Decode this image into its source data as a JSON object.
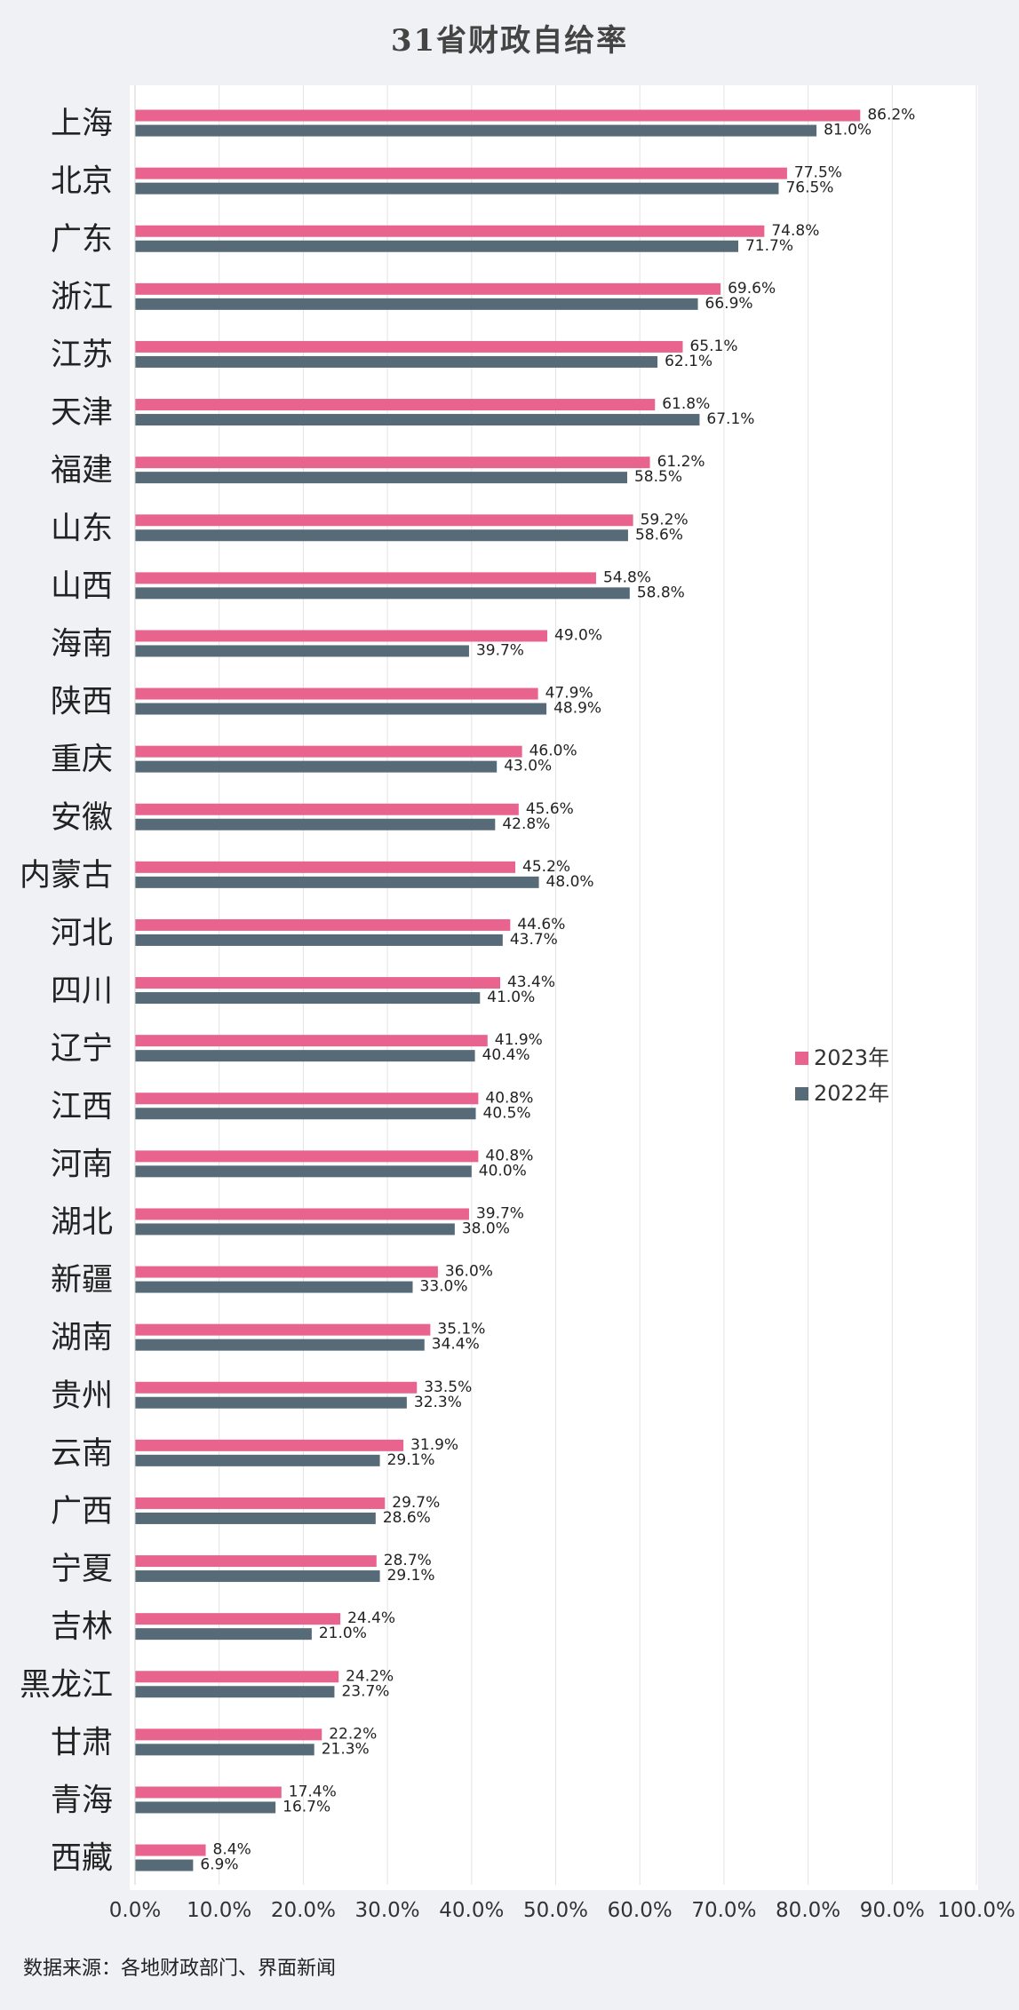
{
  "chart_data": {
    "type": "bar",
    "orientation": "horizontal",
    "title": "31省财政自给率",
    "categories": [
      "上海",
      "北京",
      "广东",
      "浙江",
      "江苏",
      "天津",
      "福建",
      "山东",
      "山西",
      "海南",
      "陕西",
      "重庆",
      "安徽",
      "内蒙古",
      "河北",
      "四川",
      "辽宁",
      "江西",
      "河南",
      "湖北",
      "新疆",
      "湖南",
      "贵州",
      "云南",
      "广西",
      "宁夏",
      "吉林",
      "黑龙江",
      "甘肃",
      "青海",
      "西藏"
    ],
    "series": [
      {
        "name": "2023年",
        "color": "#e8648e",
        "values": [
          86.2,
          77.5,
          74.8,
          69.6,
          65.1,
          61.8,
          61.2,
          59.2,
          54.8,
          49.0,
          47.9,
          46.0,
          45.6,
          45.2,
          44.6,
          43.4,
          41.9,
          40.8,
          40.8,
          39.7,
          36.0,
          35.1,
          33.5,
          31.9,
          29.7,
          28.7,
          24.4,
          24.2,
          22.2,
          17.4,
          8.4
        ],
        "labels": [
          "86.2%",
          "77.5%",
          "74.8%",
          "69.6%",
          "65.1%",
          "61.8%",
          "61.2%",
          "59.2%",
          "54.8%",
          "49.0%",
          "47.9%",
          "46.0%",
          "45.6%",
          "45.2%",
          "44.6%",
          "43.4%",
          "41.9%",
          "40.8%",
          "40.8%",
          "39.7%",
          "36.0%",
          "35.1%",
          "33.5%",
          "31.9%",
          "29.7%",
          "28.7%",
          "24.4%",
          "24.2%",
          "22.2%",
          "17.4%",
          "8.4%"
        ]
      },
      {
        "name": "2022年",
        "color": "#566a78",
        "values": [
          81.0,
          76.5,
          71.7,
          66.9,
          62.1,
          67.1,
          58.5,
          58.6,
          58.8,
          39.7,
          48.9,
          43.0,
          42.8,
          48.0,
          43.7,
          41.0,
          40.4,
          40.5,
          40.0,
          38.0,
          33.0,
          34.4,
          32.3,
          29.1,
          28.6,
          29.1,
          21.0,
          23.7,
          21.3,
          16.7,
          6.9
        ],
        "labels": [
          "81.0%",
          "76.5%",
          "71.7%",
          "66.9%",
          "62.1%",
          "67.1%",
          "58.5%",
          "58.6%",
          "58.8%",
          "39.7%",
          "48.9%",
          "43.0%",
          "42.8%",
          "48.0%",
          "43.7%",
          "41.0%",
          "40.4%",
          "40.5%",
          "40.0%",
          "38.0%",
          "33.0%",
          "34.4%",
          "32.3%",
          "29.1%",
          "28.6%",
          "29.1%",
          "21.0%",
          "23.7%",
          "21.3%",
          "16.7%",
          "6.9%"
        ]
      }
    ],
    "xlim": [
      0,
      100
    ],
    "xticks": [
      "0.0%",
      "10.0%",
      "20.0%",
      "30.0%",
      "40.0%",
      "50.0%",
      "60.0%",
      "70.0%",
      "80.0%",
      "90.0%",
      "100.0%"
    ],
    "grid": true,
    "legend_position": "right"
  },
  "source_note": "数据来源：各地财政部门、界面新闻"
}
